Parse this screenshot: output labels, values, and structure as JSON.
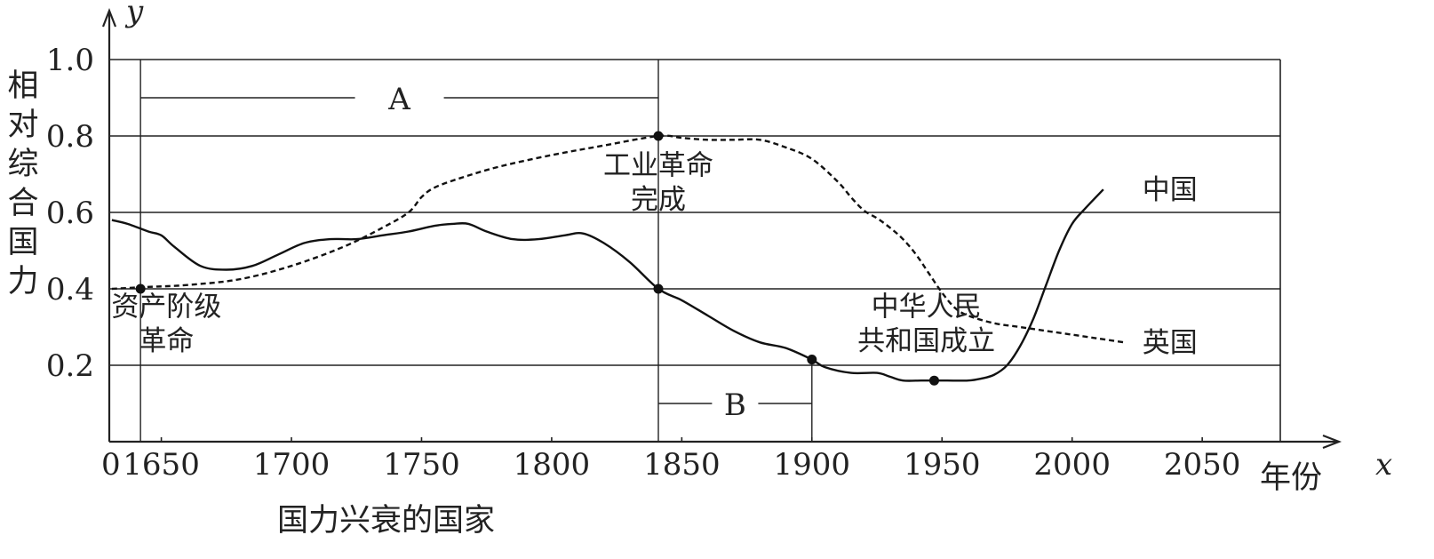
{
  "chart_data": {
    "type": "line",
    "title": "",
    "xlabel": "年份",
    "x_axis_symbol": "x",
    "ylabel": "相对综合国力",
    "y_axis_symbol": "y",
    "bottom_caption": "国力兴衰的国家",
    "x_origin_label": "0",
    "x_ticks": [
      1650,
      1700,
      1750,
      1800,
      1850,
      1900,
      1950,
      2000,
      2050
    ],
    "x_tick_labels": [
      "1650",
      "1700",
      "1750",
      "1800",
      "1850",
      "1900",
      "1950",
      "2000",
      "2050"
    ],
    "y_ticks": [
      0.2,
      0.4,
      0.6,
      0.8,
      1.0
    ],
    "y_tick_labels": [
      "0.2",
      "0.4",
      "0.6",
      "0.8",
      "1.0"
    ],
    "xlim": [
      1630,
      2080
    ],
    "ylim": [
      0,
      1.0
    ],
    "grid": "horizontal",
    "series": [
      {
        "name": "中国",
        "style": "solid",
        "x": [
          1631,
          1637,
          1645,
          1650,
          1655,
          1665,
          1675,
          1685,
          1695,
          1705,
          1715,
          1725,
          1735,
          1745,
          1755,
          1762,
          1768,
          1775,
          1785,
          1795,
          1805,
          1812,
          1820,
          1830,
          1841,
          1850,
          1860,
          1870,
          1880,
          1890,
          1900,
          1905,
          1915,
          1925,
          1930,
          1935,
          1942,
          1947,
          1952,
          1960,
          1965,
          1970,
          1975,
          1980,
          1985,
          1990,
          1995,
          2000,
          2005,
          2012
        ],
        "y": [
          0.58,
          0.57,
          0.55,
          0.54,
          0.51,
          0.46,
          0.45,
          0.46,
          0.49,
          0.52,
          0.53,
          0.53,
          0.54,
          0.55,
          0.565,
          0.57,
          0.57,
          0.55,
          0.53,
          0.53,
          0.54,
          0.545,
          0.52,
          0.47,
          0.4,
          0.37,
          0.33,
          0.29,
          0.26,
          0.245,
          0.215,
          0.195,
          0.18,
          0.18,
          0.17,
          0.16,
          0.16,
          0.16,
          0.16,
          0.16,
          0.165,
          0.175,
          0.2,
          0.25,
          0.32,
          0.41,
          0.5,
          0.57,
          0.61,
          0.66
        ]
      },
      {
        "name": "英国",
        "style": "dashed",
        "x": [
          1631,
          1645,
          1660,
          1680,
          1700,
          1720,
          1735,
          1745,
          1750,
          1755,
          1765,
          1780,
          1800,
          1820,
          1841,
          1850,
          1860,
          1870,
          1880,
          1890,
          1900,
          1910,
          1915,
          1920,
          1925,
          1930,
          1935,
          1940,
          1945,
          1950,
          1955,
          1960,
          1970,
          1980,
          1990,
          2000,
          2010,
          2020
        ],
        "y": [
          0.4,
          0.405,
          0.41,
          0.425,
          0.46,
          0.51,
          0.56,
          0.6,
          0.64,
          0.665,
          0.69,
          0.72,
          0.75,
          0.775,
          0.8,
          0.795,
          0.79,
          0.79,
          0.79,
          0.77,
          0.74,
          0.68,
          0.64,
          0.605,
          0.585,
          0.56,
          0.53,
          0.49,
          0.44,
          0.39,
          0.35,
          0.33,
          0.31,
          0.3,
          0.29,
          0.28,
          0.27,
          0.26
        ]
      }
    ],
    "marked_points": [
      {
        "x": 1642,
        "y": 0.4
      },
      {
        "x": 1841,
        "y": 0.8
      },
      {
        "x": 1841,
        "y": 0.4
      },
      {
        "x": 1900,
        "y": 0.215
      },
      {
        "x": 1947,
        "y": 0.16
      }
    ],
    "annotations": [
      {
        "text": "资产阶级",
        "x": 1652,
        "y": 0.355
      },
      {
        "text": "革命",
        "x": 1652,
        "y": 0.265
      },
      {
        "text": "工业革命",
        "x": 1841,
        "y": 0.725
      },
      {
        "text": "完成",
        "x": 1841,
        "y": 0.635
      },
      {
        "text": "中华人民",
        "x": 1944,
        "y": 0.355
      },
      {
        "text": "共和国成立",
        "x": 1944,
        "y": 0.265
      },
      {
        "text": "中国",
        "x": 2027,
        "y": 0.66
      },
      {
        "text": "英国",
        "x": 2027,
        "y": 0.26
      }
    ],
    "ranges": [
      {
        "label": "A",
        "x_start": 1642,
        "x_end": 1841,
        "y": 0.9
      },
      {
        "label": "B",
        "x_start": 1841,
        "x_end": 1900,
        "y": 0.1
      }
    ],
    "vertical_markers": [
      1642,
      1841,
      1900
    ]
  }
}
